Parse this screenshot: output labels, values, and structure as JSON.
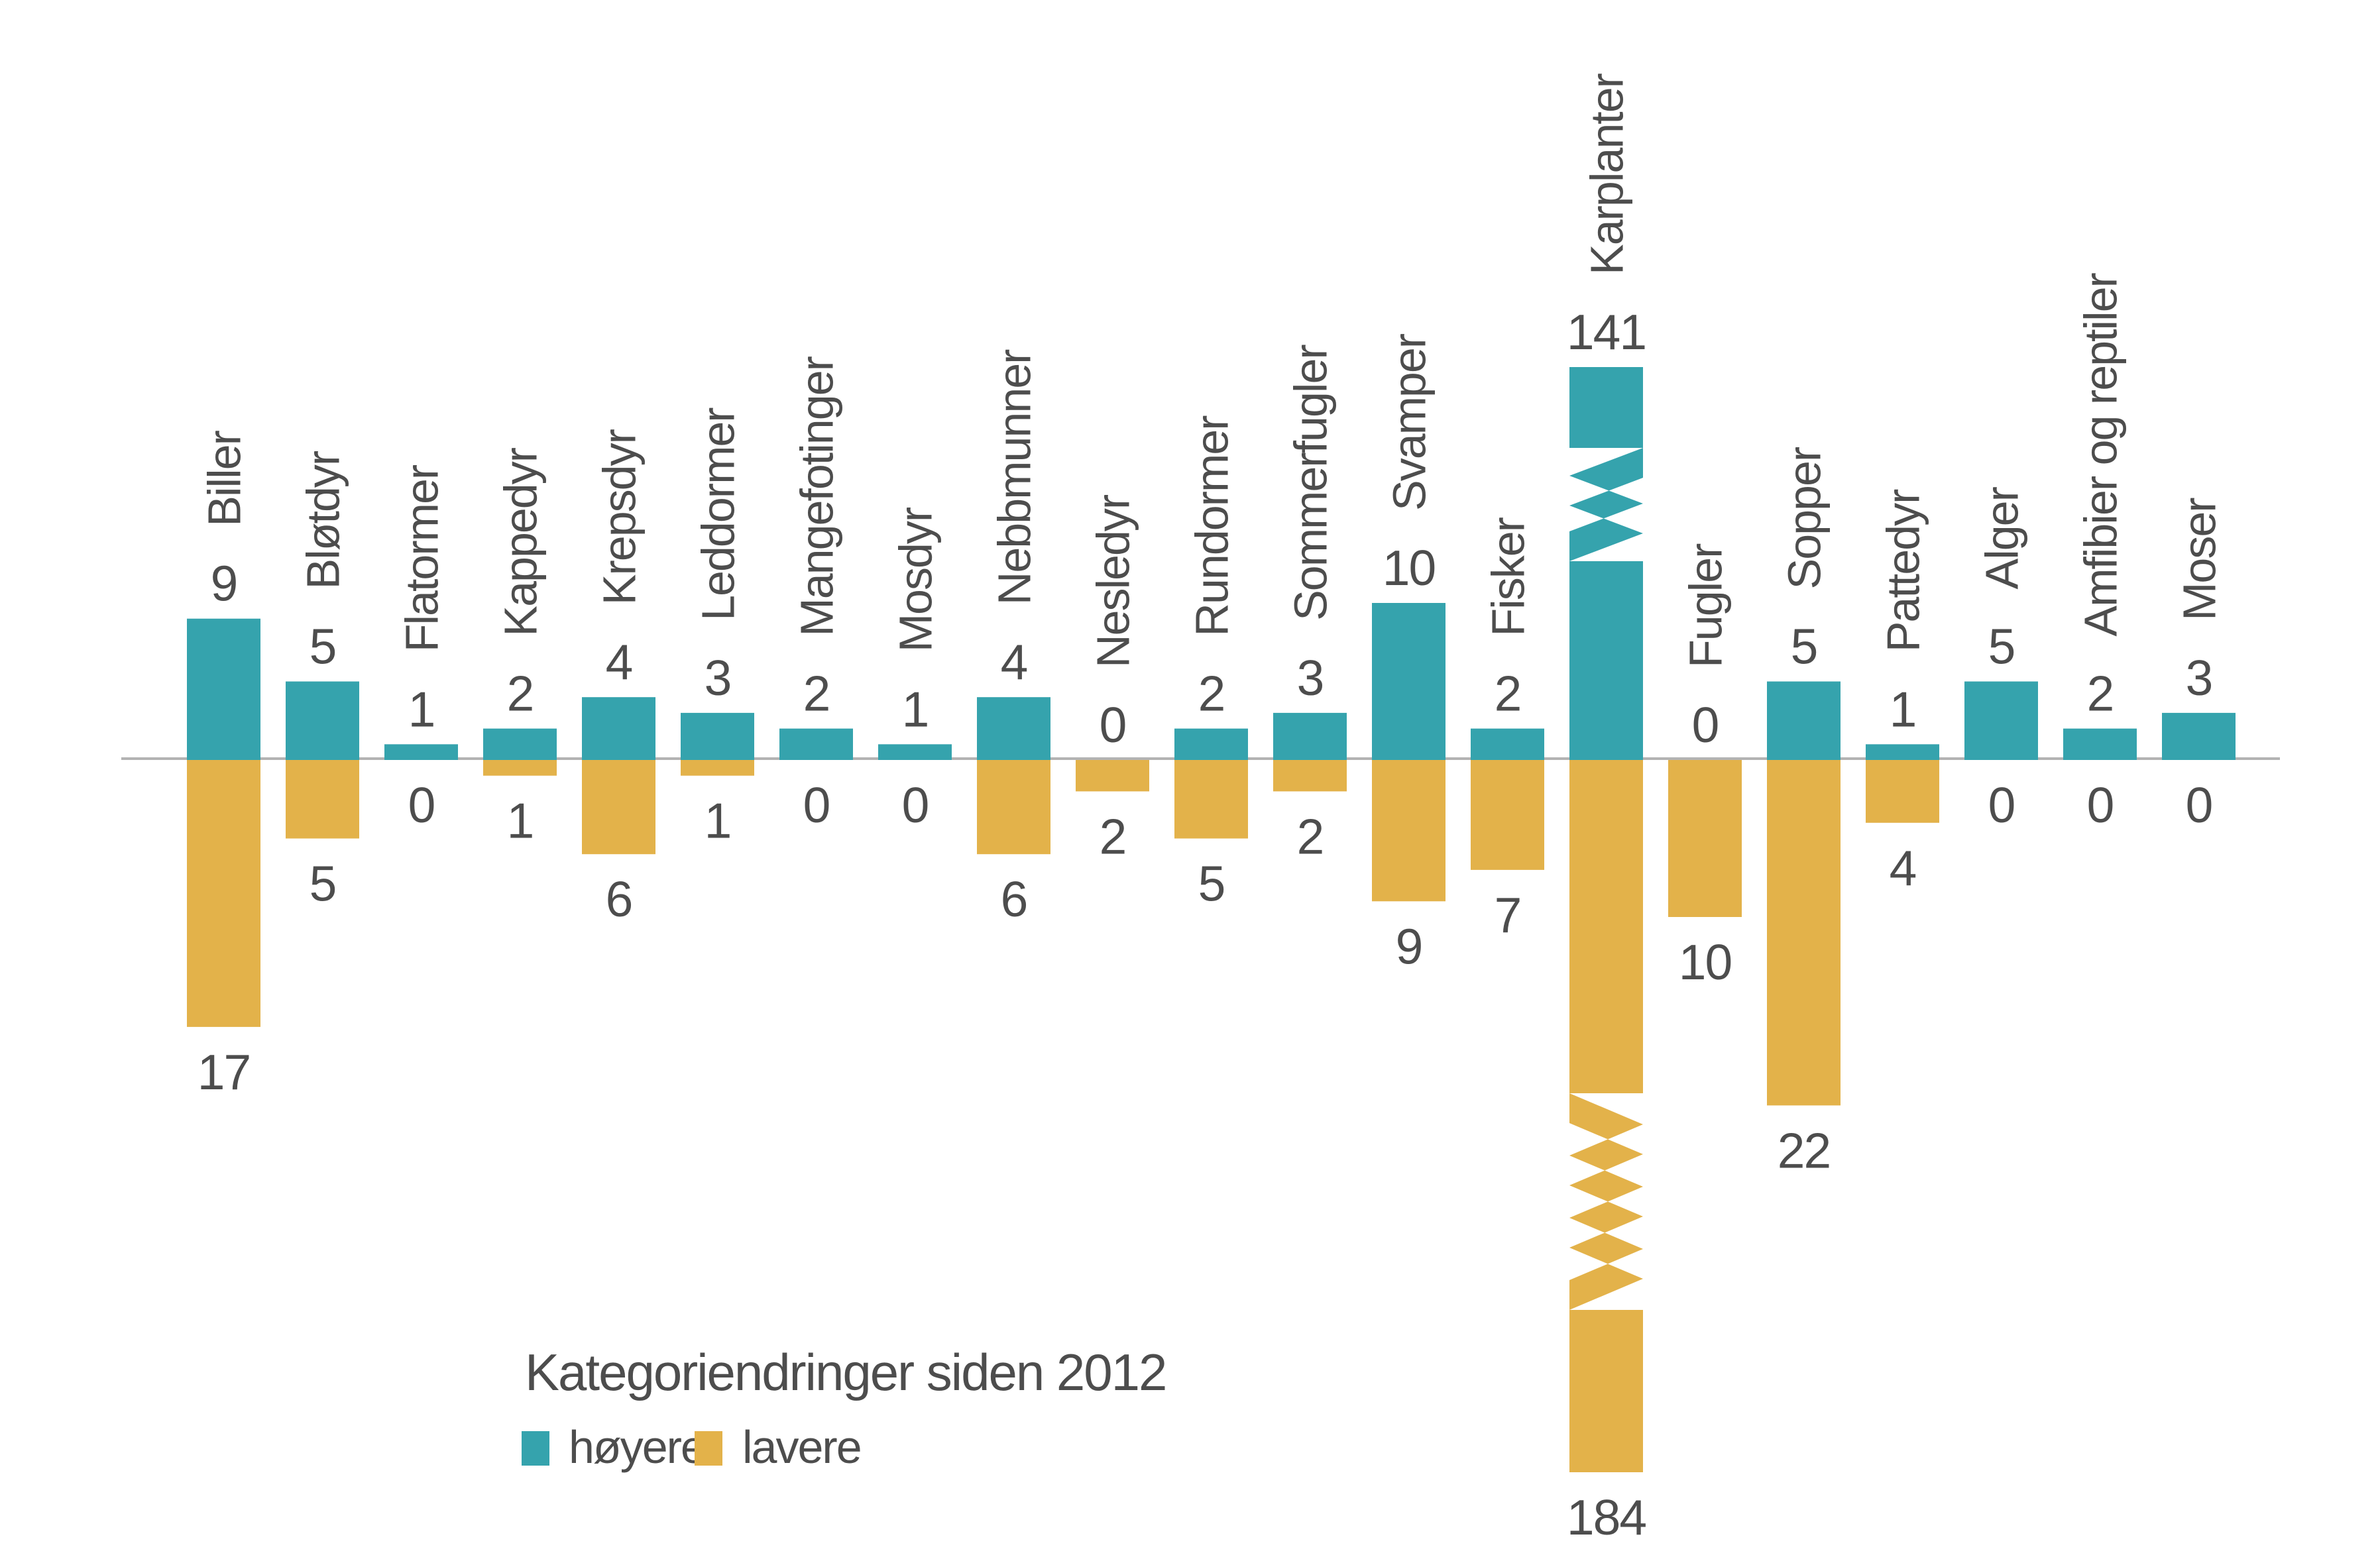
{
  "chart_data": {
    "type": "bar",
    "subtype": "diverging-vertical",
    "title": "Kategoriendringer siden 2012",
    "xlabel": "",
    "ylabel": "",
    "grid": false,
    "y_axis_ticks_visible": false,
    "baseline_value": 0,
    "legend_position": "bottom-left",
    "background_color": "#ffffff",
    "axis_line_color": "#b3b3b3",
    "text_color": "#4d4d4d",
    "value_labels_shown": true,
    "categories": [
      "Biller",
      "Bløtdyr",
      "Flatormer",
      "Kappedyr",
      "Krepsdyr",
      "Leddormer",
      "Mangefotinger",
      "Mosdyr",
      "Nebbmunner",
      "Nesledyr",
      "Rundormer",
      "Sommerfugler",
      "Svamper",
      "Fisker",
      "Karplanter",
      "Fugler",
      "Sopper",
      "Pattedyr",
      "Alger",
      "Amfibier og reptiler",
      "Moser"
    ],
    "series": [
      {
        "name": "høyere",
        "direction": "up",
        "color": "#35a3ad",
        "values": [
          9,
          5,
          1,
          2,
          4,
          3,
          2,
          1,
          4,
          0,
          2,
          3,
          10,
          2,
          141,
          0,
          5,
          1,
          5,
          2,
          3
        ]
      },
      {
        "name": "lavere",
        "direction": "down",
        "color": "#e3b24a",
        "values": [
          17,
          5,
          0,
          1,
          6,
          1,
          0,
          0,
          6,
          2,
          5,
          2,
          9,
          7,
          184,
          10,
          22,
          4,
          0,
          0,
          0
        ]
      }
    ],
    "legend": [
      {
        "label": "høyere",
        "color": "#35a3ad"
      },
      {
        "label": "lavere",
        "color": "#e3b24a"
      }
    ],
    "broken_bars": {
      "category": "Karplanter",
      "marker": "zigzag",
      "hoyere_true_value": 141,
      "lavere_true_value": 184
    }
  }
}
